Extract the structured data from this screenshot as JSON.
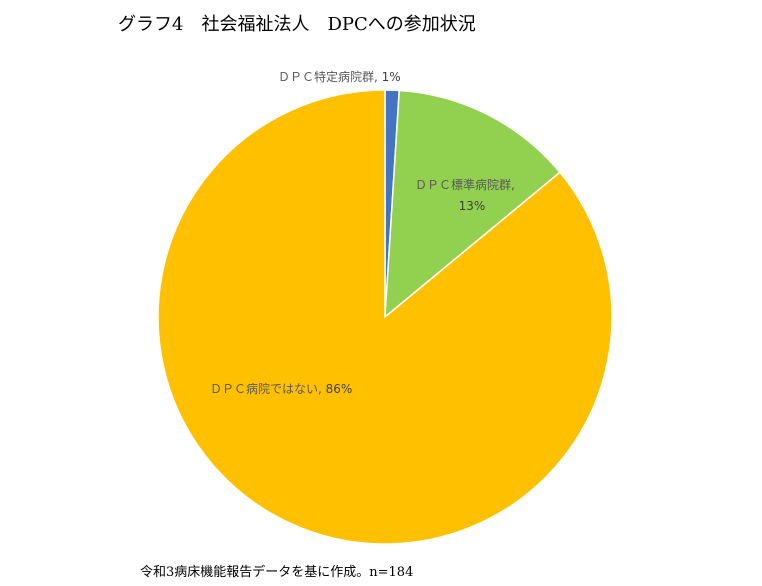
{
  "chart_data": {
    "type": "pie",
    "title": "グラフ4　社会福祉法人　DPCへの参加状況",
    "slices": [
      {
        "label": "ＤＰＣ特定病院群",
        "value": 1,
        "percent_label": "1%",
        "color": "#4472C4"
      },
      {
        "label": "ＤＰＣ標準病院群",
        "value": 13,
        "percent_label": "13%",
        "color": "#92D050"
      },
      {
        "label": "ＤＰＣ病院ではない",
        "value": 86,
        "percent_label": "86%",
        "color": "#FFC000"
      }
    ],
    "start_angle_deg": 0,
    "direction": "clockwise"
  },
  "footnote": "令和3病床機能報告データを基に作成。n=184"
}
